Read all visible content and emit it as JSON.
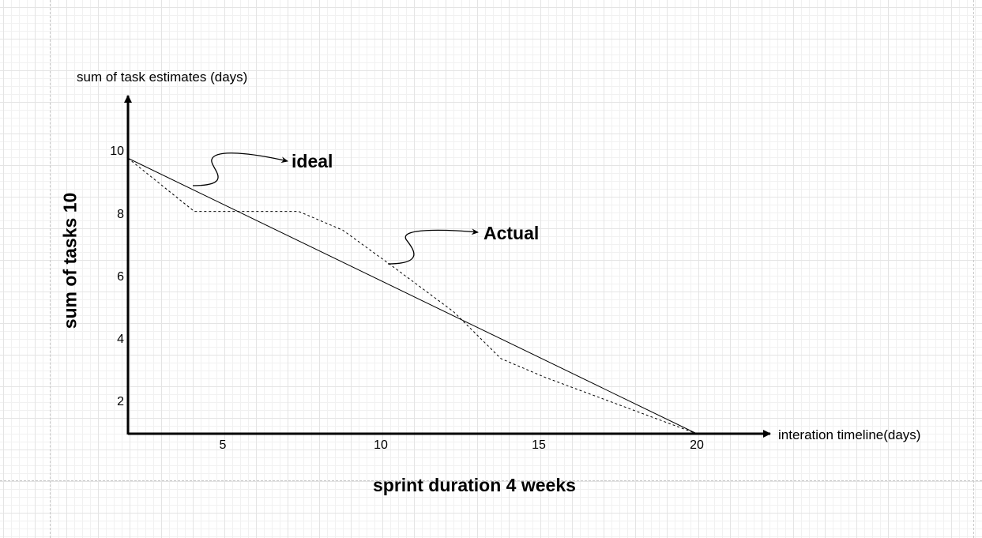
{
  "chart_data": {
    "type": "line",
    "title": "sprint duration 4 weeks",
    "xlabel": "interation timeline(days)",
    "ylabel_top": "sum of task estimates (days)",
    "ylabel_side": "sum of tasks 10",
    "x_ticks": [
      {
        "value": 5,
        "label": "5"
      },
      {
        "value": 10,
        "label": "10"
      },
      {
        "value": 15,
        "label": "15"
      },
      {
        "value": 20,
        "label": "20"
      }
    ],
    "y_ticks": [
      {
        "value": 10,
        "label": "10"
      },
      {
        "value": 8,
        "label": "8"
      },
      {
        "value": 6,
        "label": "6"
      },
      {
        "value": 4,
        "label": "4"
      },
      {
        "value": 2,
        "label": "2"
      }
    ],
    "xlim": [
      2,
      22.3
    ],
    "ylim": [
      1,
      11.8
    ],
    "grid": true,
    "series": [
      {
        "name": "ideal",
        "style": "solid",
        "points": [
          [
            2,
            9.8
          ],
          [
            20,
            1
          ]
        ]
      },
      {
        "name": "Actual",
        "style": "dashed",
        "points": [
          [
            2,
            9.8
          ],
          [
            4.1,
            8.1
          ],
          [
            7.4,
            8.1
          ],
          [
            8.8,
            7.5
          ],
          [
            10.3,
            6.4
          ],
          [
            12.3,
            4.9
          ],
          [
            13.8,
            3.4
          ],
          [
            15.2,
            2.8
          ],
          [
            20,
            1
          ]
        ]
      }
    ],
    "annotations": [
      {
        "text": "ideal",
        "points_to_series": "ideal"
      },
      {
        "text": "Actual",
        "points_to_series": "Actual"
      }
    ]
  }
}
